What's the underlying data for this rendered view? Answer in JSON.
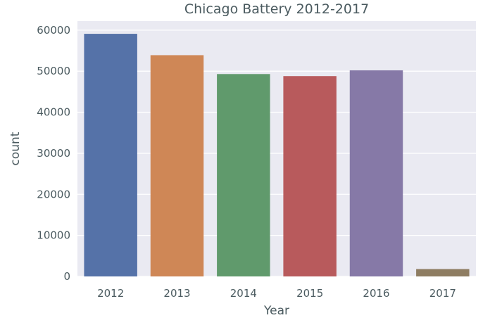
{
  "chart_data": {
    "type": "bar",
    "title": "Chicago Battery 2012-2017",
    "xlabel": "Year",
    "ylabel": "count",
    "categories": [
      "2012",
      "2013",
      "2014",
      "2015",
      "2016",
      "2017"
    ],
    "values": [
      59100,
      53900,
      49300,
      48800,
      50200,
      1800
    ],
    "colors": [
      "#5572a8",
      "#cf8756",
      "#609a6c",
      "#b85a5c",
      "#8679a7",
      "#8e7d62"
    ],
    "ylim": [
      0,
      62200
    ],
    "yticks": [
      0,
      10000,
      20000,
      30000,
      40000,
      50000,
      60000
    ],
    "grid": true,
    "background": "#eaeaf2",
    "grid_color": "#ffffff",
    "text_color": "#4a5a5f"
  }
}
